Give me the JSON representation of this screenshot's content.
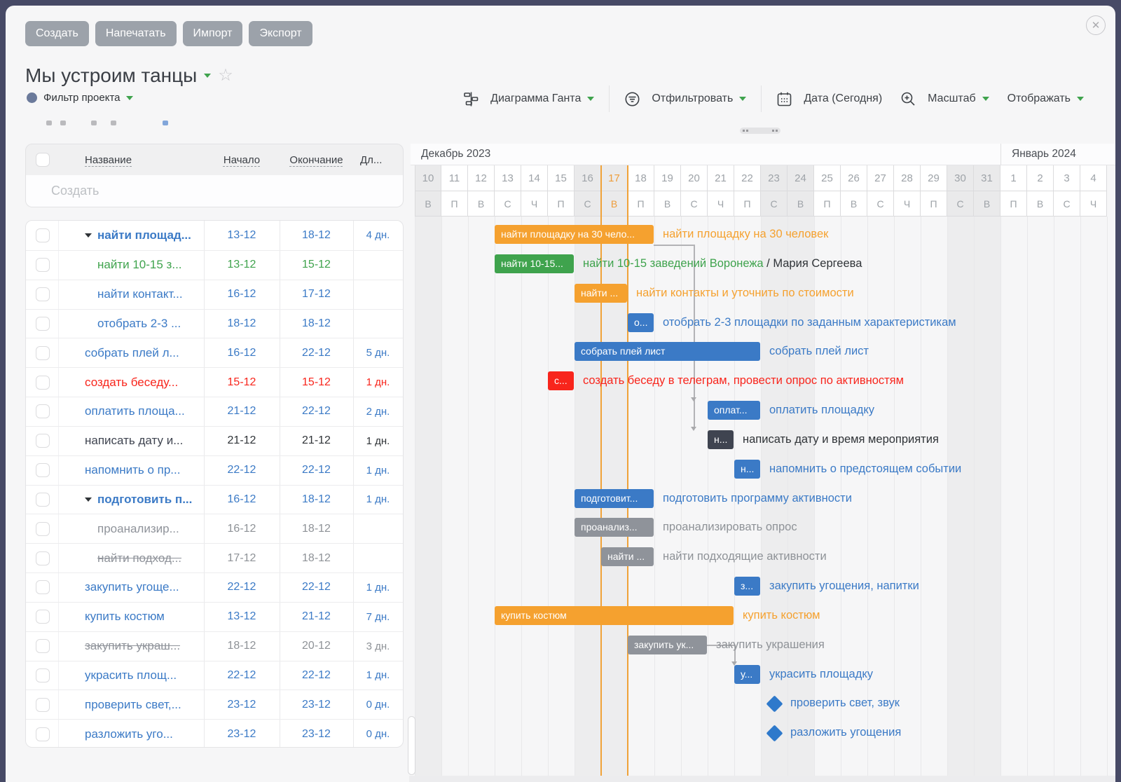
{
  "window": {
    "close_glyph": "✕"
  },
  "top_toolbar": {
    "buttons": [
      "Создать",
      "Напечатать",
      "Импорт",
      "Экспорт"
    ]
  },
  "header": {
    "title": "Мы устроим танцы",
    "favorite_star": "☆",
    "filter_label": "Фильтр проекта"
  },
  "view_toolbar": {
    "items": [
      {
        "label": "Диаграмма Ганта",
        "icon": "gantt-chart-icon",
        "dropdown": true,
        "divider_after": true
      },
      {
        "label": "Отфильтровать",
        "icon": "filter-icon",
        "dropdown": true,
        "divider_after": true
      },
      {
        "label": "Дата (Сегодня)",
        "icon": "calendar-icon",
        "dropdown": false,
        "divider_after": false
      },
      {
        "label": "Масштаб",
        "icon": "zoom-in-icon",
        "dropdown": true,
        "divider_after": false
      },
      {
        "label": "Отображать",
        "icon": null,
        "dropdown": true,
        "divider_after": false
      }
    ]
  },
  "colors": {
    "blue": "#3B7AC6",
    "green": "#3FA34D",
    "orange": "#F5A12F",
    "red": "#F8251C",
    "dark": "#3F4450",
    "gray": "#8F939A",
    "today_orange": "#F0A238",
    "label_dark": "#2F3337",
    "label_gray": "#8E9297",
    "milestone_blue": "#2E79CB"
  },
  "table": {
    "headers": {
      "name": "Название",
      "start": "Начало",
      "end": "Окончание",
      "duration": "Дл..."
    },
    "create_placeholder": "Создать",
    "rows": [
      {
        "name": "найти площад...",
        "start": "13-12",
        "end": "18-12",
        "duration": "4 дн.",
        "color": "blue",
        "bold": true,
        "caret": true,
        "indent": false,
        "strike": false
      },
      {
        "name": "найти 10-15 з...",
        "start": "13-12",
        "end": "15-12",
        "duration": "",
        "color": "green",
        "bold": false,
        "caret": false,
        "indent": true,
        "strike": false
      },
      {
        "name": "найти контакт...",
        "start": "16-12",
        "end": "17-12",
        "duration": "",
        "color": "blue",
        "bold": false,
        "caret": false,
        "indent": true,
        "strike": false
      },
      {
        "name": "отобрать 2-3 ...",
        "start": "18-12",
        "end": "18-12",
        "duration": "",
        "color": "blue",
        "bold": false,
        "caret": false,
        "indent": true,
        "strike": false
      },
      {
        "name": "собрать плей л...",
        "start": "16-12",
        "end": "22-12",
        "duration": "5 дн.",
        "color": "blue",
        "bold": false,
        "caret": false,
        "indent": false,
        "strike": false
      },
      {
        "name": "создать беседу...",
        "start": "15-12",
        "end": "15-12",
        "duration": "1 дн.",
        "color": "red",
        "bold": false,
        "caret": false,
        "indent": false,
        "strike": false
      },
      {
        "name": "оплатить площа...",
        "start": "21-12",
        "end": "22-12",
        "duration": "2 дн.",
        "color": "blue",
        "bold": false,
        "caret": false,
        "indent": false,
        "strike": false
      },
      {
        "name": "написать дату и...",
        "start": "21-12",
        "end": "21-12",
        "duration": "1 дн.",
        "color": "dark",
        "bold": false,
        "caret": false,
        "indent": false,
        "strike": false
      },
      {
        "name": "напомнить о пр...",
        "start": "22-12",
        "end": "22-12",
        "duration": "1 дн.",
        "color": "blue",
        "bold": false,
        "caret": false,
        "indent": false,
        "strike": false
      },
      {
        "name": "подготовить п...",
        "start": "16-12",
        "end": "18-12",
        "duration": "1 дн.",
        "color": "blue",
        "bold": true,
        "caret": true,
        "indent": false,
        "strike": false
      },
      {
        "name": "проанализир...",
        "start": "16-12",
        "end": "18-12",
        "duration": "",
        "color": "gray",
        "bold": false,
        "caret": false,
        "indent": true,
        "strike": false
      },
      {
        "name": "найти подход...",
        "start": "17-12",
        "end": "18-12",
        "duration": "",
        "color": "gray",
        "bold": false,
        "caret": false,
        "indent": true,
        "strike": true
      },
      {
        "name": "закупить угоще...",
        "start": "22-12",
        "end": "22-12",
        "duration": "1 дн.",
        "color": "blue",
        "bold": false,
        "caret": false,
        "indent": false,
        "strike": false
      },
      {
        "name": "купить костюм",
        "start": "13-12",
        "end": "21-12",
        "duration": "7 дн.",
        "color": "blue",
        "bold": false,
        "caret": false,
        "indent": false,
        "strike": false
      },
      {
        "name": "закупить украш...",
        "start": "18-12",
        "end": "20-12",
        "duration": "3 дн.",
        "color": "gray",
        "bold": false,
        "caret": false,
        "indent": false,
        "strike": true
      },
      {
        "name": "украсить площ...",
        "start": "22-12",
        "end": "22-12",
        "duration": "1 дн.",
        "color": "blue",
        "bold": false,
        "caret": false,
        "indent": false,
        "strike": false
      },
      {
        "name": "проверить свет,...",
        "start": "23-12",
        "end": "23-12",
        "duration": "0 дн.",
        "color": "blue",
        "bold": false,
        "caret": false,
        "indent": false,
        "strike": false
      },
      {
        "name": "разложить уго...",
        "start": "23-12",
        "end": "23-12",
        "duration": "0 дн.",
        "color": "blue",
        "bold": false,
        "caret": false,
        "indent": false,
        "strike": false
      }
    ]
  },
  "gantt": {
    "months": [
      {
        "label": "Декабрь 2023",
        "days": 22
      },
      {
        "label": "Январь 2024",
        "days": 4
      }
    ],
    "days": [
      {
        "d": "10",
        "w": "В",
        "weekend": true,
        "today": false
      },
      {
        "d": "11",
        "w": "П",
        "weekend": false,
        "today": false
      },
      {
        "d": "12",
        "w": "В",
        "weekend": false,
        "today": false
      },
      {
        "d": "13",
        "w": "С",
        "weekend": false,
        "today": false
      },
      {
        "d": "14",
        "w": "Ч",
        "weekend": false,
        "today": false
      },
      {
        "d": "15",
        "w": "П",
        "weekend": false,
        "today": false
      },
      {
        "d": "16",
        "w": "С",
        "weekend": true,
        "today": false
      },
      {
        "d": "17",
        "w": "В",
        "weekend": true,
        "today": true
      },
      {
        "d": "18",
        "w": "П",
        "weekend": false,
        "today": false
      },
      {
        "d": "19",
        "w": "В",
        "weekend": false,
        "today": false
      },
      {
        "d": "20",
        "w": "С",
        "weekend": false,
        "today": false
      },
      {
        "d": "21",
        "w": "Ч",
        "weekend": false,
        "today": false
      },
      {
        "d": "22",
        "w": "П",
        "weekend": false,
        "today": false
      },
      {
        "d": "23",
        "w": "С",
        "weekend": true,
        "today": false
      },
      {
        "d": "24",
        "w": "В",
        "weekend": true,
        "today": false
      },
      {
        "d": "25",
        "w": "П",
        "weekend": false,
        "today": false
      },
      {
        "d": "26",
        "w": "В",
        "weekend": false,
        "today": false
      },
      {
        "d": "27",
        "w": "С",
        "weekend": false,
        "today": false
      },
      {
        "d": "28",
        "w": "Ч",
        "weekend": false,
        "today": false
      },
      {
        "d": "29",
        "w": "П",
        "weekend": false,
        "today": false
      },
      {
        "d": "30",
        "w": "С",
        "weekend": true,
        "today": false
      },
      {
        "d": "31",
        "w": "В",
        "weekend": true,
        "today": false
      },
      {
        "d": "1",
        "w": "П",
        "weekend": false,
        "today": false
      },
      {
        "d": "2",
        "w": "В",
        "weekend": false,
        "today": false
      },
      {
        "d": "3",
        "w": "С",
        "weekend": false,
        "today": false
      },
      {
        "d": "4",
        "w": "Ч",
        "weekend": false,
        "today": false
      }
    ],
    "bars": [
      {
        "row": 0,
        "kind": "parent",
        "color": "orange",
        "start": 3,
        "end": 9,
        "bar_text": "найти площадку на 30 чело...",
        "label": "найти площадку на 30 человек"
      },
      {
        "row": 1,
        "kind": "bar",
        "color": "green",
        "start": 3,
        "end": 6,
        "bar_text": "найти 10-15...",
        "label": "найти 10-15 заведений Воронежа",
        "label_suffix": " / Мария Сергеева"
      },
      {
        "row": 2,
        "kind": "bar",
        "color": "orange",
        "start": 6,
        "end": 8,
        "bar_text": "найти ...",
        "label": "найти контакты и уточнить по стоимости"
      },
      {
        "row": 3,
        "kind": "bar",
        "color": "blue",
        "start": 8,
        "end": 9,
        "bar_text": "о...",
        "label": "отобрать 2-3 площадки по заданным характеристикам"
      },
      {
        "row": 4,
        "kind": "bar",
        "color": "blue",
        "start": 6,
        "end": 13,
        "bar_text": "собрать плей лист",
        "label": "собрать плей лист"
      },
      {
        "row": 5,
        "kind": "bar",
        "color": "red",
        "start": 5,
        "end": 6,
        "bar_text": "с...",
        "label": "создать беседу в телеграм, провести опрос по активностям"
      },
      {
        "row": 6,
        "kind": "bar",
        "color": "blue",
        "start": 11,
        "end": 13,
        "bar_text": "оплат...",
        "label": "оплатить площадку"
      },
      {
        "row": 7,
        "kind": "bar",
        "color": "dark",
        "start": 11,
        "end": 12,
        "bar_text": "н...",
        "label": "написать дату и время мероприятия",
        "label_color": "label_dark"
      },
      {
        "row": 8,
        "kind": "bar",
        "color": "blue",
        "start": 12,
        "end": 13,
        "bar_text": "н...",
        "label": "напомнить о предстоящем событии"
      },
      {
        "row": 9,
        "kind": "parent",
        "color": "blue",
        "start": 6,
        "end": 9,
        "bar_text": "подготовит...",
        "label": "подготовить программу активности"
      },
      {
        "row": 10,
        "kind": "bar",
        "color": "gray",
        "start": 6,
        "end": 9,
        "bar_text": "проанализ...",
        "label": "проанализировать опрос",
        "label_color": "label_gray"
      },
      {
        "row": 11,
        "kind": "bar",
        "color": "gray",
        "start": 7,
        "end": 9,
        "bar_text": "найти ...",
        "label": "найти подходящие активности",
        "label_color": "label_gray"
      },
      {
        "row": 12,
        "kind": "bar",
        "color": "blue",
        "start": 12,
        "end": 13,
        "bar_text": "з...",
        "label": "закупить угощения, напитки"
      },
      {
        "row": 13,
        "kind": "bar",
        "color": "orange",
        "start": 3,
        "end": 12,
        "bar_text": "купить костюм",
        "label": "купить костюм"
      },
      {
        "row": 14,
        "kind": "bar",
        "color": "gray",
        "start": 8,
        "end": 11,
        "bar_text": "закупить ук...",
        "label": "закупить украшения",
        "label_color": "label_gray"
      },
      {
        "row": 15,
        "kind": "bar",
        "color": "blue",
        "start": 12,
        "end": 13,
        "bar_text": "у...",
        "label": "украсить площадку"
      },
      {
        "row": 16,
        "kind": "milestone",
        "color": "blue",
        "start": 13,
        "end": 13,
        "bar_text": "",
        "label": "проверить свет, звук"
      },
      {
        "row": 17,
        "kind": "milestone",
        "color": "blue",
        "start": 13,
        "end": 13,
        "bar_text": "",
        "label": "разложить угощения"
      }
    ],
    "connectors": [
      {
        "from_bar": 0,
        "to_bars": [
          6,
          7
        ],
        "turn_before": 20
      },
      {
        "from_bar": 14,
        "to_bars": [
          15
        ],
        "turn_before": 0
      }
    ]
  }
}
